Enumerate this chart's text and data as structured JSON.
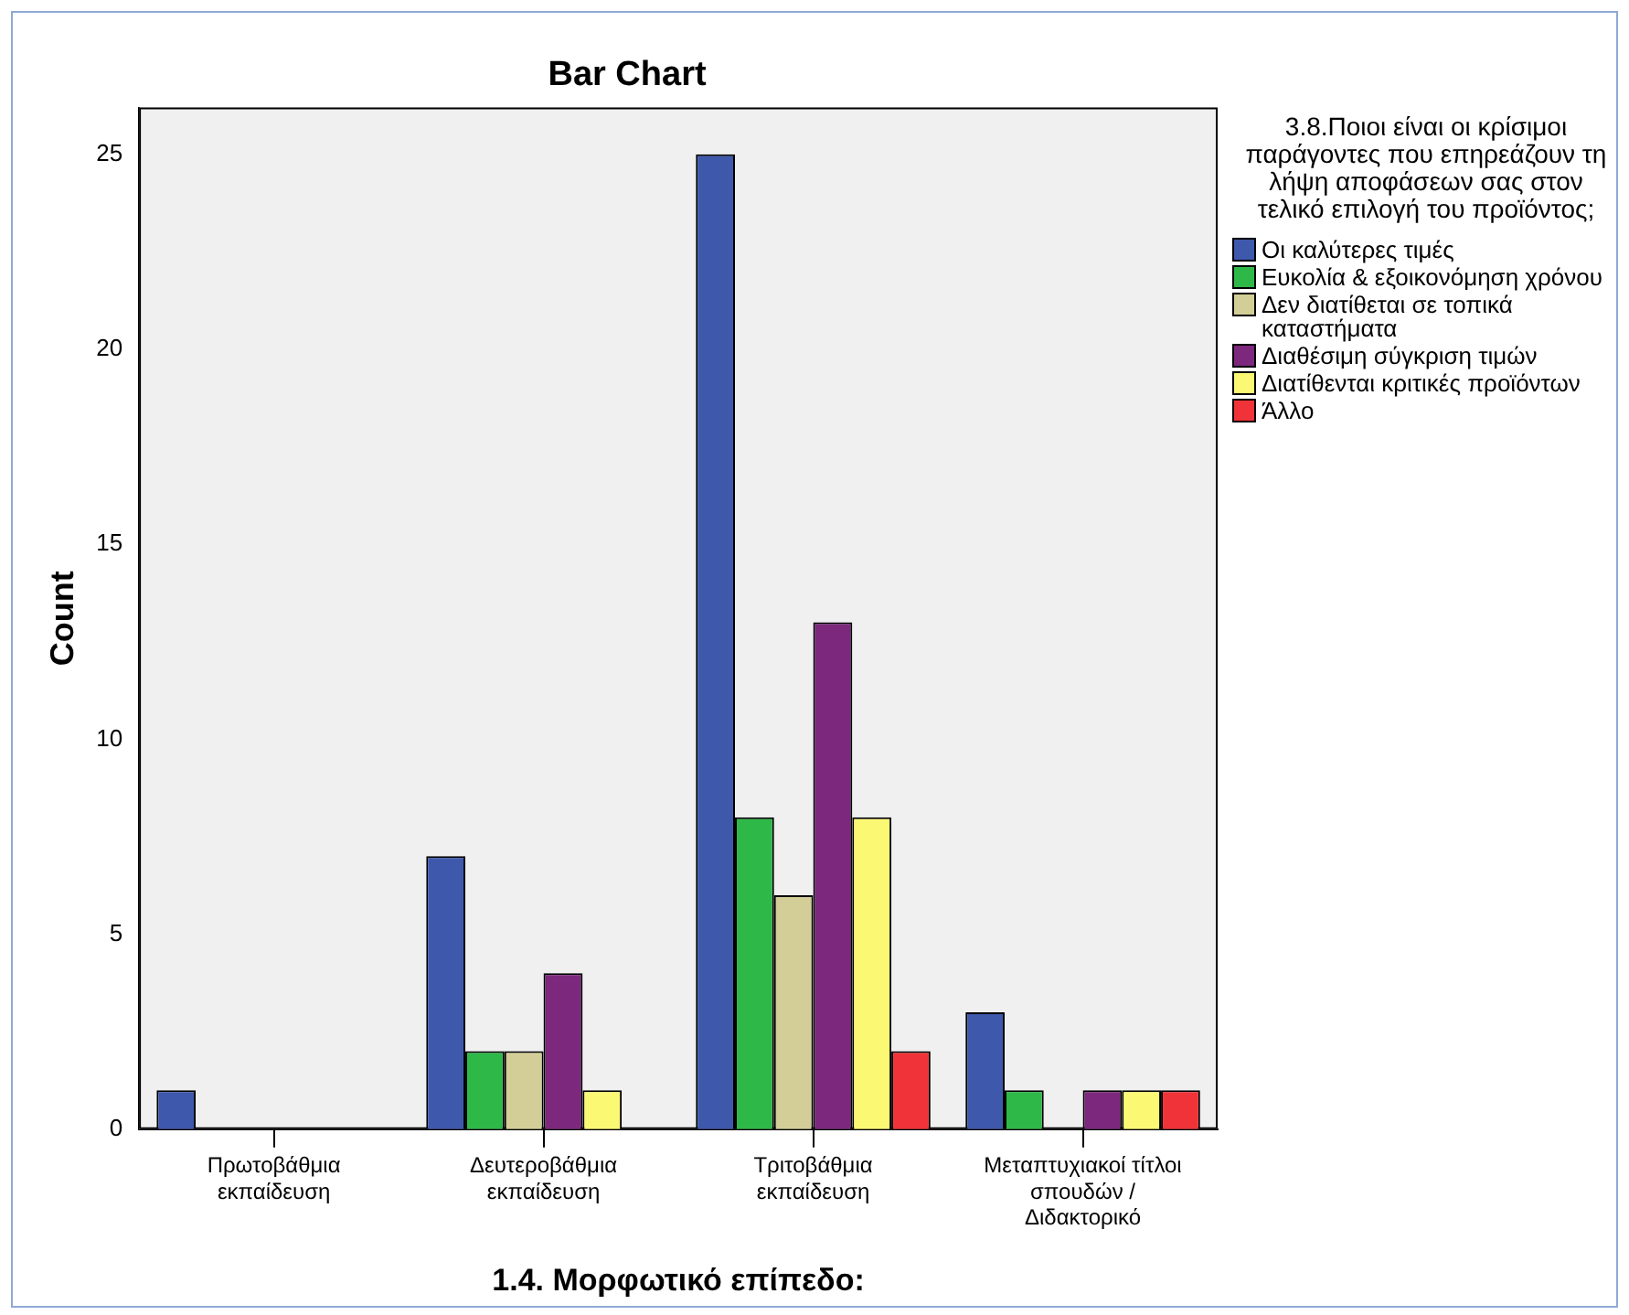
{
  "chart_data": {
    "type": "bar",
    "title": "Bar Chart",
    "xlabel": "1.4. Μορφωτικό επίπεδο:",
    "ylabel": "Count",
    "legend_title": "3.8.Ποιοι είναι οι κρίσιμοι παράγοντες που επηρεάζουν τη λήψη αποφάσεων σας στον τελικό επιλογή του προϊόντος;",
    "categories": [
      "Πρωτοβάθμια εκπαίδευση",
      "Δευτεροβάθμια εκπαίδευση",
      "Τριτοβάθμια εκπαίδευση",
      "Μεταπτυχιακοί τίτλοι σπουδών / Διδακτορικό"
    ],
    "series": [
      {
        "name": "Οι καλύτερες τιμές",
        "color": "#3e58ac",
        "values": [
          1,
          7,
          25,
          3
        ]
      },
      {
        "name": "Ευκολία & εξοικονόμηση χρόνου",
        "color": "#2eb848",
        "values": [
          null,
          2,
          8,
          1
        ]
      },
      {
        "name": "Δεν διατίθεται σε τοπικά καταστήματα",
        "color": "#d3ce97",
        "values": [
          null,
          2,
          6,
          null
        ]
      },
      {
        "name": "Διαθέσιμη σύγκριση τιμών",
        "color": "#7c287d",
        "values": [
          null,
          4,
          13,
          1
        ]
      },
      {
        "name": "Διατίθενται κριτικές προϊόντων",
        "color": "#fbf873",
        "values": [
          null,
          1,
          8,
          1
        ]
      },
      {
        "name": "Άλλο",
        "color": "#ef3338",
        "values": [
          null,
          null,
          2,
          1
        ]
      }
    ],
    "ylim": [
      0,
      26.2
    ],
    "yticks": [
      0,
      5,
      10,
      15,
      20,
      25
    ],
    "grid": false,
    "legend": "right"
  }
}
